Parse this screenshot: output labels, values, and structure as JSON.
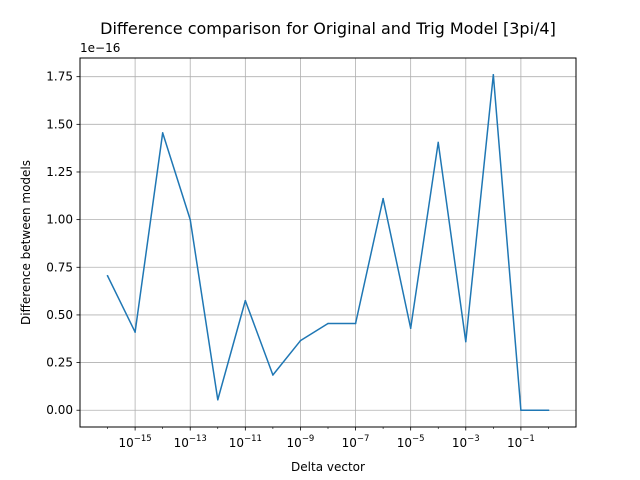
{
  "chart_data": {
    "type": "line",
    "title": "Difference comparison for Original and Trig Model [3pi/4]",
    "xlabel": "Delta vector",
    "ylabel": "Difference between models",
    "y_offset_label": "1e−16",
    "x_scale": "log",
    "x_range": [
      1e-17,
      10
    ],
    "ylim": [
      -0.088,
      1.848
    ],
    "grid": true,
    "legend": "none",
    "color": "#1f77b4",
    "x_ticks": [
      {
        "value": 1e-15,
        "base": "10",
        "exp": "−15"
      },
      {
        "value": 1e-13,
        "base": "10",
        "exp": "−13"
      },
      {
        "value": 1e-11,
        "base": "10",
        "exp": "−11"
      },
      {
        "value": 1e-09,
        "base": "10",
        "exp": "−9"
      },
      {
        "value": 1e-07,
        "base": "10",
        "exp": "−7"
      },
      {
        "value": 1e-05,
        "base": "10",
        "exp": "−5"
      },
      {
        "value": 0.001,
        "base": "10",
        "exp": "−3"
      },
      {
        "value": 0.1,
        "base": "10",
        "exp": "−1"
      }
    ],
    "y_ticks": [
      {
        "value": 0.0,
        "label": "0.00"
      },
      {
        "value": 0.25,
        "label": "0.25"
      },
      {
        "value": 0.5,
        "label": "0.50"
      },
      {
        "value": 0.75,
        "label": "0.75"
      },
      {
        "value": 1.0,
        "label": "1.00"
      },
      {
        "value": 1.25,
        "label": "1.25"
      },
      {
        "value": 1.5,
        "label": "1.50"
      },
      {
        "value": 1.75,
        "label": "1.75"
      }
    ],
    "x": [
      1e-16,
      1e-15,
      1e-14,
      1e-13,
      1e-12,
      1e-11,
      1e-10,
      1e-09,
      1e-08,
      1e-07,
      1e-06,
      1e-05,
      0.0001,
      0.001,
      0.01,
      0.1,
      1
    ],
    "values": [
      0.705,
      0.41,
      1.455,
      1.0,
      0.055,
      0.575,
      0.185,
      0.365,
      0.455,
      0.455,
      1.11,
      0.43,
      1.405,
      0.36,
      1.76,
      0.0,
      0.0
    ]
  }
}
